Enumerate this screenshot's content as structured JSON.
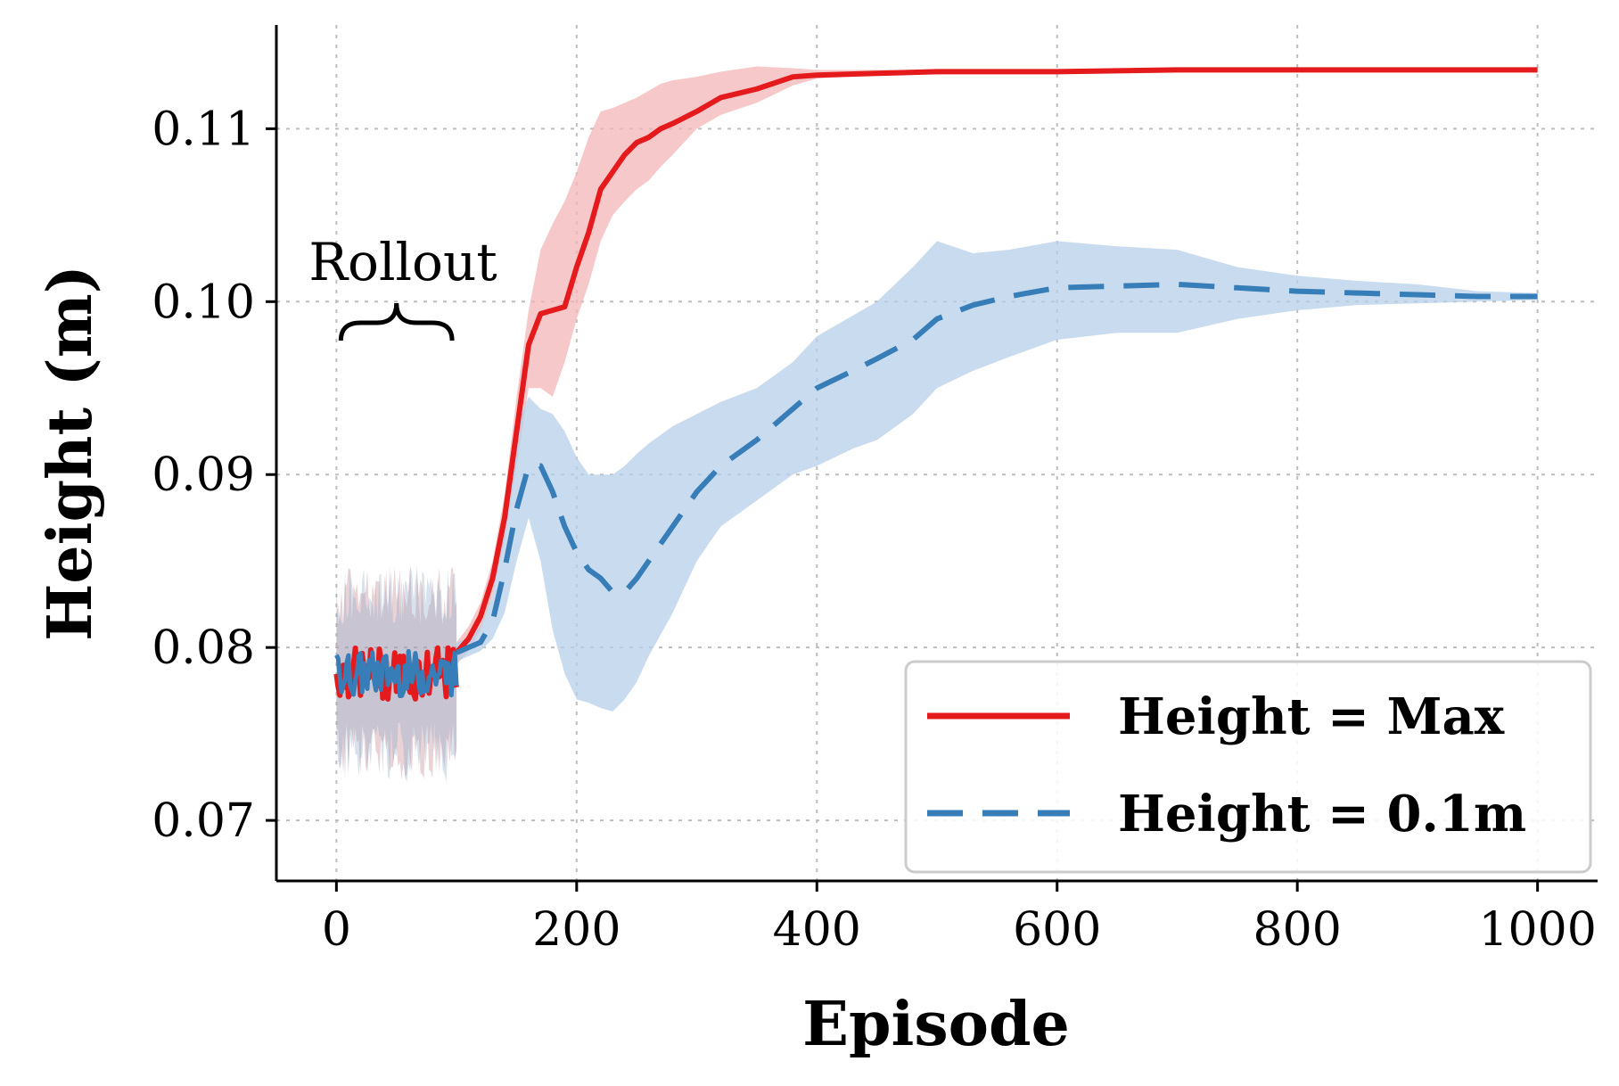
{
  "chart_data": {
    "type": "line",
    "title": "",
    "xlabel": "Episode",
    "ylabel": "Height (m)",
    "xlim": [
      -50,
      1050
    ],
    "ylim": [
      0.0665,
      0.116
    ],
    "x_ticks": [
      0,
      200,
      400,
      600,
      800,
      1000
    ],
    "x_tick_labels": [
      "0",
      "200",
      "400",
      "600",
      "800",
      "1000"
    ],
    "y_ticks": [
      0.07,
      0.08,
      0.09,
      0.1,
      0.11
    ],
    "y_tick_labels": [
      "0.07",
      "0.08",
      "0.09",
      "0.10",
      "0.11"
    ],
    "grid": true,
    "legend_position": "lower-right",
    "annotation": {
      "text": "Rollout",
      "x_range": [
        0,
        100
      ]
    },
    "series": [
      {
        "name": "Height = Max",
        "color": "#e41a1c",
        "style": "solid",
        "rollout": {
          "x_range": [
            0,
            100
          ],
          "mean": 0.0785,
          "noise_amp": 0.0015,
          "band_amp": 0.007
        },
        "x": [
          100,
          110,
          120,
          130,
          140,
          150,
          160,
          170,
          180,
          190,
          200,
          210,
          220,
          230,
          240,
          250,
          260,
          270,
          280,
          300,
          320,
          350,
          380,
          400,
          450,
          500,
          550,
          600,
          700,
          800,
          900,
          1000
        ],
        "y": [
          0.0797,
          0.0805,
          0.0818,
          0.084,
          0.0875,
          0.0925,
          0.0975,
          0.0993,
          0.0995,
          0.0997,
          0.102,
          0.104,
          0.1065,
          0.1075,
          0.1085,
          0.1092,
          0.1095,
          0.11,
          0.1103,
          0.111,
          0.1118,
          0.1123,
          0.113,
          0.1131,
          0.1132,
          0.1133,
          0.1133,
          0.1133,
          0.1134,
          0.1134,
          0.1134,
          0.1134
        ],
        "lower": [
          0.079,
          0.0798,
          0.081,
          0.083,
          0.0862,
          0.0905,
          0.095,
          0.095,
          0.0945,
          0.0965,
          0.099,
          0.101,
          0.1035,
          0.105,
          0.1058,
          0.1065,
          0.107,
          0.1078,
          0.1085,
          0.11,
          0.1108,
          0.1115,
          0.1125,
          0.1129,
          0.1131,
          0.1132,
          0.1132,
          0.1132,
          0.1133,
          0.1133,
          0.1133,
          0.1133
        ],
        "upper": [
          0.0803,
          0.0812,
          0.0826,
          0.085,
          0.0888,
          0.0945,
          0.0995,
          0.103,
          0.1045,
          0.1058,
          0.1075,
          0.1095,
          0.111,
          0.1112,
          0.1115,
          0.1118,
          0.1122,
          0.1126,
          0.1128,
          0.113,
          0.1133,
          0.1136,
          0.1135,
          0.1134,
          0.1134,
          0.1134,
          0.1134,
          0.1134,
          0.1135,
          0.1135,
          0.1135,
          0.1135
        ]
      },
      {
        "name": "Height = 0.1m",
        "color": "#377eb8",
        "style": "dashed",
        "rollout": {
          "x_range": [
            0,
            100
          ],
          "mean": 0.0785,
          "noise_amp": 0.0013,
          "band_amp": 0.007
        },
        "x": [
          100,
          110,
          120,
          130,
          140,
          150,
          160,
          170,
          180,
          190,
          200,
          210,
          220,
          230,
          240,
          250,
          260,
          280,
          300,
          320,
          350,
          380,
          400,
          430,
          450,
          480,
          500,
          530,
          560,
          600,
          650,
          700,
          750,
          800,
          850,
          900,
          950,
          1000
        ],
        "y": [
          0.0797,
          0.08,
          0.0803,
          0.0815,
          0.0845,
          0.088,
          0.0905,
          0.0905,
          0.089,
          0.087,
          0.0855,
          0.0845,
          0.084,
          0.0832,
          0.0832,
          0.084,
          0.085,
          0.087,
          0.089,
          0.0905,
          0.092,
          0.0938,
          0.095,
          0.096,
          0.0967,
          0.0978,
          0.099,
          0.0998,
          0.1003,
          0.1008,
          0.1009,
          0.101,
          0.1008,
          0.1006,
          0.1005,
          0.1004,
          0.1003,
          0.1003
        ],
        "lower": [
          0.0792,
          0.0795,
          0.0798,
          0.0805,
          0.082,
          0.085,
          0.0875,
          0.085,
          0.081,
          0.0785,
          0.077,
          0.0768,
          0.0765,
          0.0763,
          0.077,
          0.078,
          0.0795,
          0.082,
          0.085,
          0.087,
          0.0885,
          0.09,
          0.0905,
          0.0915,
          0.092,
          0.0935,
          0.095,
          0.096,
          0.0968,
          0.0978,
          0.0982,
          0.0982,
          0.099,
          0.0995,
          0.0998,
          0.0999,
          0.1,
          0.1001
        ],
        "upper": [
          0.0803,
          0.0806,
          0.0812,
          0.083,
          0.088,
          0.0928,
          0.0945,
          0.0938,
          0.0935,
          0.0925,
          0.091,
          0.09,
          0.09,
          0.09,
          0.0905,
          0.0912,
          0.0918,
          0.0928,
          0.0935,
          0.0942,
          0.095,
          0.0965,
          0.098,
          0.0992,
          0.1,
          0.102,
          0.1035,
          0.1028,
          0.103,
          0.1035,
          0.1032,
          0.103,
          0.102,
          0.1015,
          0.1012,
          0.101,
          0.1006,
          0.1005
        ]
      }
    ]
  }
}
